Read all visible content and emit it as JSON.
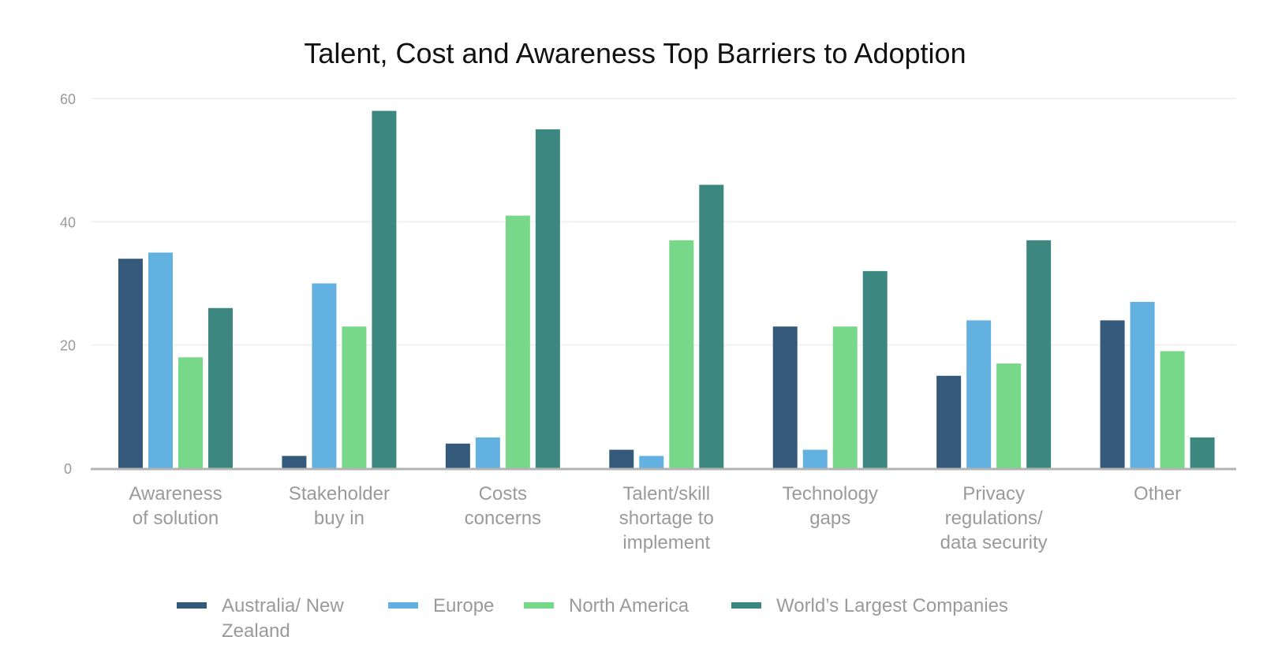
{
  "chart_data": {
    "type": "bar",
    "title": "Talent, Cost and Awareness Top Barriers to Adoption",
    "xlabel": "",
    "ylabel": "",
    "ylim": [
      0,
      60
    ],
    "yticks": [
      "0",
      "20",
      "40",
      "60"
    ],
    "grid": true,
    "legend_position": "bottom",
    "categories": [
      [
        "Awareness",
        "of solution"
      ],
      [
        "Stakeholder",
        "buy in"
      ],
      [
        "Costs",
        "concerns"
      ],
      [
        "Talent/skill",
        "shortage to",
        "implement"
      ],
      [
        "Technology",
        "gaps"
      ],
      [
        "Privacy",
        "regulations/",
        "data security"
      ],
      [
        "Other"
      ]
    ],
    "series": [
      {
        "name": "Australia/ New Zealand",
        "name_lines": [
          "Australia/ New",
          "Zealand"
        ],
        "color": "#34597a",
        "values": [
          34,
          2,
          4,
          3,
          23,
          15,
          24
        ]
      },
      {
        "name": "Europe",
        "name_lines": [
          "Europe"
        ],
        "color": "#63b1e1",
        "values": [
          35,
          30,
          5,
          2,
          3,
          24,
          27
        ]
      },
      {
        "name": "North America",
        "name_lines": [
          "North America"
        ],
        "color": "#78d88a",
        "values": [
          18,
          23,
          41,
          37,
          23,
          17,
          19
        ]
      },
      {
        "name": "World’s Largest Companies",
        "name_lines": [
          "World’s Largest Companies"
        ],
        "color": "#3c8880",
        "values": [
          26,
          58,
          55,
          46,
          32,
          37,
          5
        ]
      }
    ]
  }
}
